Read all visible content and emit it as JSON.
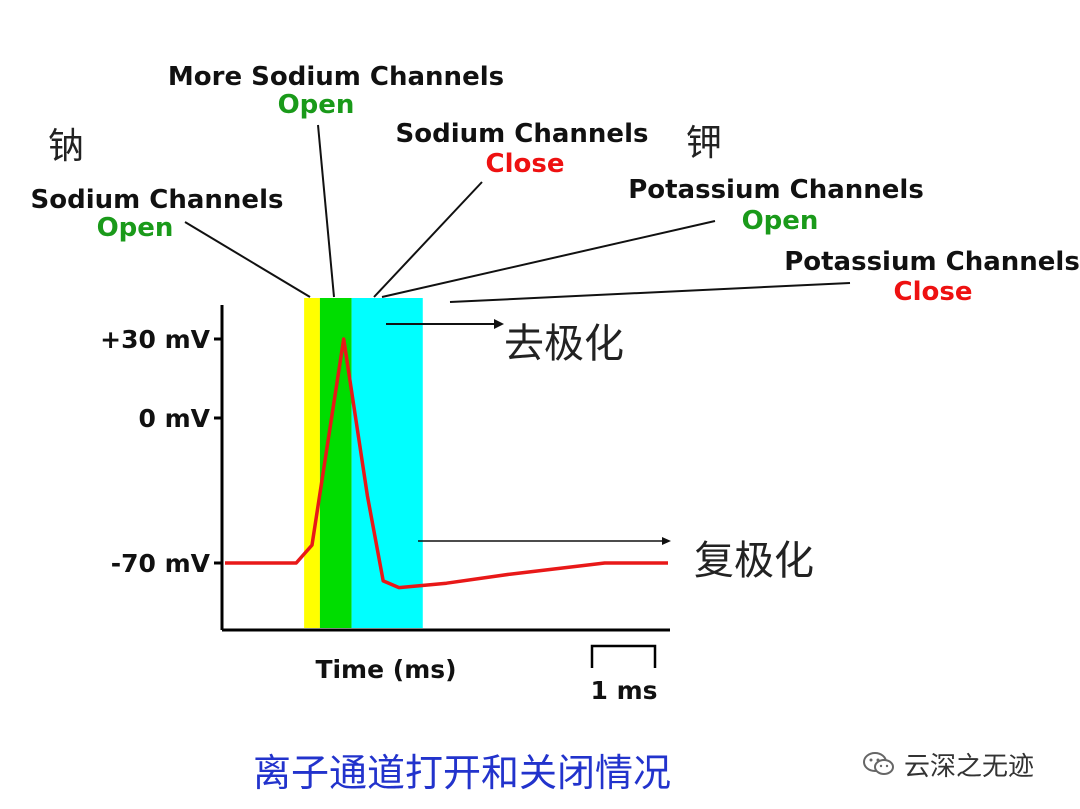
{
  "annotations": {
    "na_cn": "钠",
    "k_cn": "钾",
    "sodium_open": {
      "title": "Sodium Channels",
      "state": "Open"
    },
    "more_sodium_open": {
      "title": "More Sodium Channels",
      "state": "Open"
    },
    "sodium_close": {
      "title": "Sodium Channels",
      "state": "Close"
    },
    "potassium_open": {
      "title": "Potassium Channels",
      "state": "Open"
    },
    "potassium_close": {
      "title": "Potassium Channels",
      "state": "Close"
    },
    "depolarization": "去极化",
    "repolarization": "复极化"
  },
  "axes": {
    "y_ticks": [
      "+30 mV",
      "0 mV",
      "-70 mV"
    ],
    "x_label": "Time (ms)",
    "scale_bar": "1 ms"
  },
  "caption": "离子通道打开和关闭情况",
  "watermark": "云深之无迹",
  "colors": {
    "open": "#1a9a1a",
    "close": "#ee1111",
    "trace": "#e81818",
    "phase_yellow": "#ffff00",
    "phase_green": "#00dd00",
    "phase_cyan": "#00ffff",
    "caption": "#2233cc"
  },
  "chart_data": {
    "type": "line",
    "x": [
      0,
      0.9,
      1.1,
      1.5,
      1.8,
      2.0,
      2.2,
      2.8,
      3.6,
      4.8,
      5.6
    ],
    "values": [
      -70,
      -70,
      -62,
      30,
      -40,
      -78,
      -81,
      -79,
      -75,
      -70,
      -70
    ],
    "y_ticks": [
      30,
      0,
      -70
    ],
    "ylim": [
      -100,
      40
    ],
    "xlim": [
      0,
      5.6
    ],
    "bands": [
      {
        "from": 1.0,
        "to": 1.2,
        "color": "#ffff00"
      },
      {
        "from": 1.2,
        "to": 1.6,
        "color": "#00dd00"
      },
      {
        "from": 1.6,
        "to": 2.5,
        "color": "#00ffff"
      }
    ]
  }
}
